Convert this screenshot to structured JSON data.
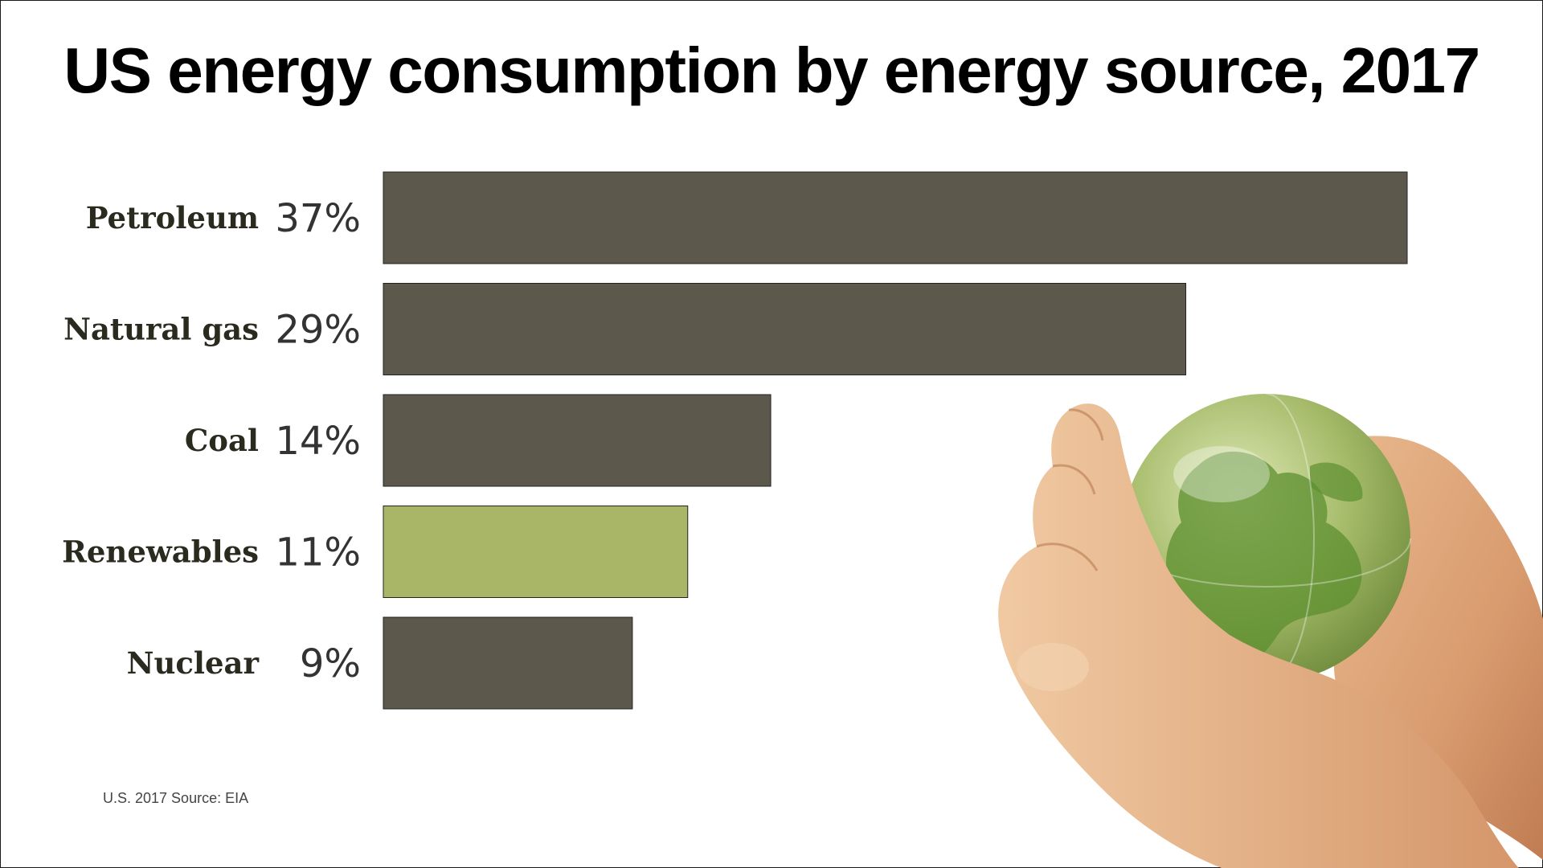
{
  "title": "US energy consumption by energy source, 2017",
  "source": "U.S. 2017 Source: EIA",
  "colors": {
    "bar_default": "#5c584c",
    "bar_highlight": "#a9b567",
    "label_text": "#2b2a1f",
    "pct_text": "#333333"
  },
  "illustration": "hands-holding-green-globe",
  "chart_data": {
    "type": "bar",
    "orientation": "horizontal",
    "title": "US energy consumption by energy source, 2017",
    "xlabel": "",
    "ylabel": "",
    "grid": false,
    "categories": [
      "Petroleum",
      "Natural gas",
      "Coal",
      "Renewables",
      "Nuclear"
    ],
    "values": [
      37,
      29,
      14,
      11,
      9
    ],
    "value_labels": [
      "37%",
      "29%",
      "14%",
      "11%",
      "9%"
    ],
    "highlight": "Renewables",
    "unit": "%"
  }
}
